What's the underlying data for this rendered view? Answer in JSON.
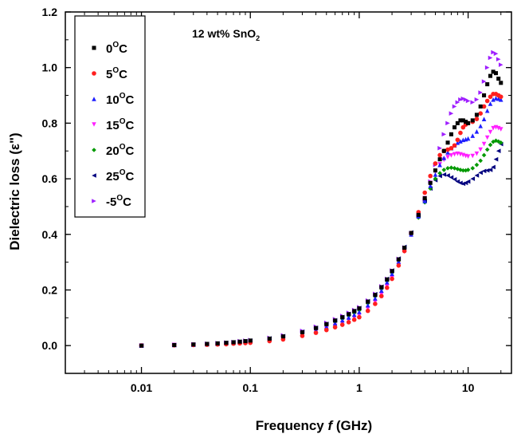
{
  "chart_data": {
    "type": "scatter",
    "title": "",
    "annotation": {
      "text": "12 wt% SnO",
      "subscript": "2"
    },
    "xlabel": {
      "prefix": "Frequency ",
      "italic": "f",
      "suffix": " (GHz)"
    },
    "ylabel": "Dielectric loss (ε\")",
    "xscale": "log",
    "xlim": [
      0.002,
      25
    ],
    "ylim": [
      -0.1,
      1.2
    ],
    "xticks": [
      0.01,
      0.1,
      1,
      10
    ],
    "xtick_labels": [
      "0.01",
      "0.1",
      "1",
      "10"
    ],
    "yticks": [
      0.0,
      0.2,
      0.4,
      0.6,
      0.8,
      1.0,
      1.2
    ],
    "ytick_labels": [
      "0.0",
      "0.2",
      "0.4",
      "0.6",
      "0.8",
      "1.0",
      "1.2"
    ],
    "legend_position": "top-left",
    "x": [
      0.01,
      0.02,
      0.03,
      0.04,
      0.05,
      0.06,
      0.07,
      0.08,
      0.09,
      0.1,
      0.15,
      0.2,
      0.3,
      0.4,
      0.5,
      0.6,
      0.7,
      0.8,
      0.9,
      1.0,
      1.2,
      1.4,
      1.6,
      1.8,
      2.0,
      2.3,
      2.6,
      3.0,
      3.5,
      4.0,
      4.5,
      5.0,
      5.5,
      6.0,
      6.5,
      7.0,
      7.5,
      8.0,
      8.5,
      9.0,
      9.5,
      10.0,
      11.0,
      12.0,
      13.0,
      14.0,
      15.0,
      16.0,
      17.0,
      18.0,
      19.0,
      20.0
    ],
    "series": [
      {
        "name": "0",
        "color": "#000000",
        "marker": "square",
        "values": [
          0.0,
          0.002,
          0.004,
          0.006,
          0.008,
          0.01,
          0.012,
          0.014,
          0.016,
          0.018,
          0.025,
          0.033,
          0.048,
          0.063,
          0.077,
          0.09,
          0.102,
          0.113,
          0.124,
          0.134,
          0.158,
          0.182,
          0.21,
          0.238,
          0.268,
          0.31,
          0.352,
          0.405,
          0.47,
          0.53,
          0.585,
          0.63,
          0.67,
          0.7,
          0.73,
          0.76,
          0.785,
          0.8,
          0.81,
          0.81,
          0.805,
          0.8,
          0.81,
          0.83,
          0.86,
          0.9,
          0.94,
          0.97,
          0.985,
          0.98,
          0.96,
          0.945
        ]
      },
      {
        "name": "5",
        "color": "#ff1f1f",
        "marker": "circle",
        "values": [
          0.0,
          0.001,
          0.002,
          0.003,
          0.004,
          0.005,
          0.007,
          0.008,
          0.009,
          0.01,
          0.016,
          0.022,
          0.035,
          0.046,
          0.056,
          0.066,
          0.075,
          0.084,
          0.093,
          0.102,
          0.125,
          0.15,
          0.178,
          0.208,
          0.24,
          0.288,
          0.34,
          0.405,
          0.48,
          0.55,
          0.61,
          0.655,
          0.685,
          0.7,
          0.705,
          0.71,
          0.72,
          0.74,
          0.765,
          0.785,
          0.795,
          0.8,
          0.805,
          0.815,
          0.835,
          0.86,
          0.88,
          0.895,
          0.905,
          0.905,
          0.9,
          0.895
        ]
      },
      {
        "name": "10",
        "color": "#1f1fff",
        "marker": "triangle-up",
        "values": [
          0.0,
          0.002,
          0.003,
          0.005,
          0.006,
          0.008,
          0.01,
          0.011,
          0.013,
          0.015,
          0.021,
          0.029,
          0.043,
          0.056,
          0.068,
          0.08,
          0.091,
          0.101,
          0.111,
          0.121,
          0.145,
          0.17,
          0.198,
          0.228,
          0.258,
          0.302,
          0.345,
          0.4,
          0.465,
          0.52,
          0.575,
          0.615,
          0.65,
          0.675,
          0.695,
          0.71,
          0.72,
          0.73,
          0.735,
          0.74,
          0.742,
          0.745,
          0.755,
          0.77,
          0.79,
          0.815,
          0.845,
          0.87,
          0.885,
          0.89,
          0.888,
          0.885
        ]
      },
      {
        "name": "15",
        "color": "#ff1fff",
        "marker": "triangle-down",
        "values": [
          0.0,
          0.002,
          0.003,
          0.004,
          0.005,
          0.006,
          0.008,
          0.009,
          0.01,
          0.012,
          0.018,
          0.025,
          0.038,
          0.05,
          0.061,
          0.071,
          0.081,
          0.091,
          0.1,
          0.109,
          0.133,
          0.157,
          0.184,
          0.213,
          0.243,
          0.29,
          0.338,
          0.398,
          0.468,
          0.53,
          0.585,
          0.625,
          0.652,
          0.668,
          0.678,
          0.684,
          0.688,
          0.69,
          0.688,
          0.685,
          0.682,
          0.68,
          0.682,
          0.69,
          0.705,
          0.725,
          0.748,
          0.768,
          0.782,
          0.785,
          0.782,
          0.778
        ]
      },
      {
        "name": "20",
        "color": "#009900",
        "marker": "diamond",
        "values": [
          0.0,
          0.002,
          0.004,
          0.006,
          0.007,
          0.009,
          0.011,
          0.013,
          0.015,
          0.017,
          0.024,
          0.032,
          0.046,
          0.06,
          0.073,
          0.085,
          0.096,
          0.107,
          0.117,
          0.127,
          0.152,
          0.177,
          0.204,
          0.232,
          0.262,
          0.305,
          0.347,
          0.4,
          0.46,
          0.515,
          0.565,
          0.6,
          0.62,
          0.632,
          0.638,
          0.64,
          0.638,
          0.635,
          0.632,
          0.63,
          0.63,
          0.632,
          0.638,
          0.65,
          0.665,
          0.685,
          0.705,
          0.722,
          0.733,
          0.737,
          0.734,
          0.73
        ]
      },
      {
        "name": "25",
        "color": "#00007f",
        "marker": "triangle-left",
        "values": [
          0.0,
          0.002,
          0.004,
          0.006,
          0.008,
          0.01,
          0.012,
          0.014,
          0.016,
          0.018,
          0.026,
          0.034,
          0.05,
          0.064,
          0.078,
          0.091,
          0.103,
          0.114,
          0.125,
          0.135,
          0.16,
          0.185,
          0.212,
          0.24,
          0.27,
          0.313,
          0.355,
          0.407,
          0.467,
          0.52,
          0.565,
          0.595,
          0.61,
          0.615,
          0.612,
          0.605,
          0.598,
          0.59,
          0.585,
          0.582,
          0.585,
          0.59,
          0.6,
          0.612,
          0.622,
          0.628,
          0.63,
          0.632,
          0.642,
          0.67,
          0.7,
          0.725
        ]
      },
      {
        "name": "-5",
        "color": "#9f1fff",
        "marker": "triangle-right",
        "values": [
          0.0,
          0.003,
          0.005,
          0.007,
          0.009,
          0.011,
          0.013,
          0.016,
          0.018,
          0.02,
          0.028,
          0.037,
          0.053,
          0.068,
          0.082,
          0.095,
          0.107,
          0.118,
          0.128,
          0.138,
          0.162,
          0.186,
          0.213,
          0.24,
          0.27,
          0.312,
          0.353,
          0.405,
          0.467,
          0.525,
          0.59,
          0.65,
          0.71,
          0.76,
          0.8,
          0.835,
          0.86,
          0.875,
          0.885,
          0.888,
          0.885,
          0.88,
          0.875,
          0.885,
          0.91,
          0.95,
          1.0,
          1.035,
          1.055,
          1.05,
          1.03,
          1.01
        ]
      }
    ]
  },
  "legend": {
    "items": [
      {
        "value": "0",
        "sup": "O",
        "unit": "C"
      },
      {
        "value": "5",
        "sup": "O",
        "unit": "C"
      },
      {
        "value": "10",
        "sup": "O",
        "unit": "C"
      },
      {
        "value": "15",
        "sup": "O",
        "unit": "C"
      },
      {
        "value": "20",
        "sup": "O",
        "unit": "C"
      },
      {
        "value": "25",
        "sup": "O",
        "unit": "C"
      },
      {
        "value": "-5",
        "sup": "O",
        "unit": "C"
      }
    ]
  }
}
